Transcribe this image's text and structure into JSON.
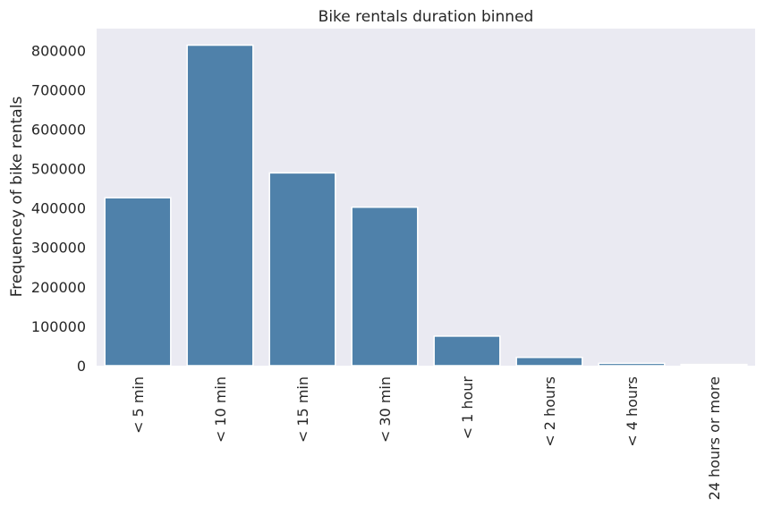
{
  "chart_data": {
    "type": "bar",
    "title": "Bike rentals duration binned",
    "xlabel": "",
    "ylabel": "Frequencey of bike rentals",
    "categories": [
      "< 5 min",
      "< 10 min",
      "< 15 min",
      "< 30 min",
      "< 1 hour",
      "< 2 hours",
      "< 4 hours",
      "24 hours or more"
    ],
    "values": [
      426000,
      813000,
      489000,
      402000,
      75000,
      21000,
      6000,
      3000
    ],
    "yticks": [
      0,
      100000,
      200000,
      300000,
      400000,
      500000,
      600000,
      700000,
      800000
    ],
    "ytick_labels": [
      "0",
      "100000",
      "200000",
      "300000",
      "400000",
      "500000",
      "600000",
      "700000",
      "800000"
    ],
    "ylim": [
      0,
      855000
    ],
    "grid": false,
    "legend": "none",
    "colors": {
      "bar": "#4f81aa",
      "plot_background": "#eaeaf2",
      "bar_edge": "#ffffff"
    }
  }
}
